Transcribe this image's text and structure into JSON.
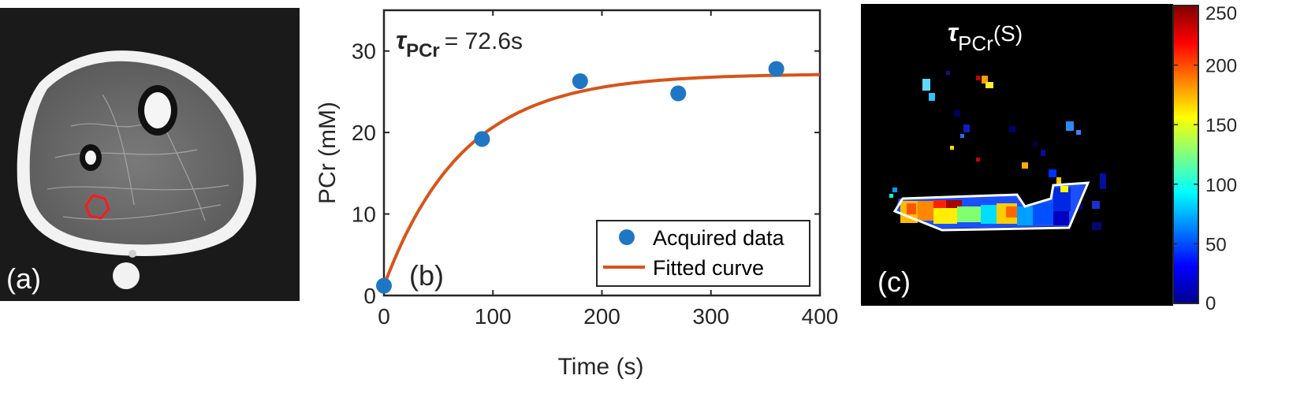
{
  "figure": {
    "panel_a": {
      "label": "(a)"
    },
    "panel_b": {
      "label": "(b)",
      "annotation_symbol": "τ",
      "annotation_subscript": "PCr",
      "annotation_value": "= 72.6s"
    },
    "panel_c": {
      "label": "(c)",
      "title_symbol": "τ",
      "title_subscript": "PCr",
      "title_unit": "(S)"
    }
  },
  "chart_data": [
    {
      "type": "scatter",
      "panel": "(b)",
      "xlabel": "Time (s)",
      "ylabel": "PCr (mM)",
      "xlim": [
        0,
        400
      ],
      "ylim": [
        0,
        35
      ],
      "xticks": [
        0,
        100,
        200,
        300,
        400
      ],
      "yticks": [
        0,
        10,
        20,
        30
      ],
      "legend_position": "bottom-right",
      "series": [
        {
          "name": "Acquired data",
          "kind": "markers",
          "color": "#1f77c4",
          "x": [
            0,
            90,
            180,
            270,
            360
          ],
          "y": [
            1.2,
            19.2,
            26.3,
            24.8,
            27.8
          ]
        },
        {
          "name": "Fitted curve",
          "kind": "line",
          "color": "#d95319",
          "model": "exponential recovery",
          "params": {
            "p0": 1.2,
            "pmax": 27.2,
            "tau": 72.6
          }
        }
      ]
    },
    {
      "type": "heatmap",
      "panel": "(c)",
      "colorbar_ticks": [
        0,
        50,
        100,
        150,
        200,
        250
      ],
      "colorbar_range": [
        0,
        250
      ],
      "colormap": "jet"
    }
  ]
}
